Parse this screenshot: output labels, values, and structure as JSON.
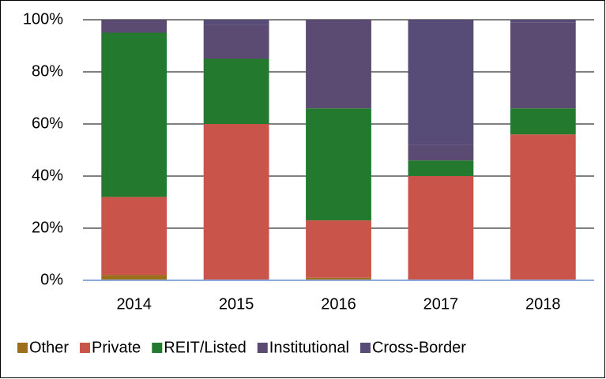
{
  "chart_data": {
    "type": "stacked_bar",
    "categories": [
      "2014",
      "2015",
      "2016",
      "2017",
      "2018"
    ],
    "series": [
      {
        "name": "Other",
        "color": "#9c6f1a",
        "values": [
          2,
          0,
          1,
          0,
          0
        ]
      },
      {
        "name": "Private",
        "color": "#c9554a",
        "values": [
          30,
          60,
          22,
          40,
          56
        ]
      },
      {
        "name": "REIT/Listed",
        "color": "#237a2e",
        "values": [
          63,
          25,
          43,
          6,
          10
        ]
      },
      {
        "name": "Institutional",
        "color": "#5b4a72",
        "values": [
          5,
          13,
          34,
          6,
          33
        ]
      },
      {
        "name": "Cross-Border",
        "color": "#574b78",
        "values": [
          0,
          2,
          0,
          48,
          1
        ]
      }
    ],
    "ylim": [
      0,
      100
    ],
    "yticks": [
      {
        "value": 0,
        "label": "0%"
      },
      {
        "value": 20,
        "label": "20%"
      },
      {
        "value": 40,
        "label": "40%"
      },
      {
        "value": 60,
        "label": "60%"
      },
      {
        "value": 80,
        "label": "80%"
      },
      {
        "value": 100,
        "label": "100%"
      }
    ],
    "grid": true,
    "legend": "bottom"
  }
}
